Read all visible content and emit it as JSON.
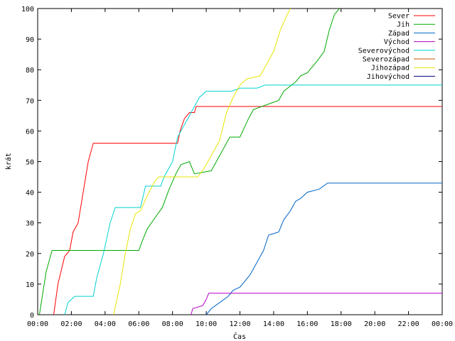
{
  "chart_data": {
    "type": "line",
    "xlabel": "Čas",
    "ylabel": "krát",
    "ylim": [
      0,
      100
    ],
    "xlim": [
      0,
      24
    ],
    "x_unit": "hours",
    "y_ticks": [
      0,
      10,
      20,
      30,
      40,
      50,
      60,
      70,
      80,
      90,
      100
    ],
    "x_ticks": [
      {
        "x": 0,
        "label": "00:00"
      },
      {
        "x": 2,
        "label": "02:00"
      },
      {
        "x": 4,
        "label": "04:00"
      },
      {
        "x": 6,
        "label": "06:00"
      },
      {
        "x": 8,
        "label": "08:00"
      },
      {
        "x": 10,
        "label": "10:00"
      },
      {
        "x": 12,
        "label": "12:00"
      },
      {
        "x": 14,
        "label": "14:00"
      },
      {
        "x": 16,
        "label": "16:00"
      },
      {
        "x": 18,
        "label": "18:00"
      },
      {
        "x": 20,
        "label": "20:00"
      },
      {
        "x": 22,
        "label": "22:00"
      },
      {
        "x": 24,
        "label": "00:00"
      }
    ],
    "grid": false,
    "legend_position": "top-right",
    "series": [
      {
        "name": "Sever",
        "color": "#ff0000",
        "points": [
          [
            0.95,
            0
          ],
          [
            1.2,
            10
          ],
          [
            1.6,
            19
          ],
          [
            1.9,
            21
          ],
          [
            2.1,
            27
          ],
          [
            2.4,
            30
          ],
          [
            2.7,
            40
          ],
          [
            3.0,
            50
          ],
          [
            3.3,
            56
          ],
          [
            8.3,
            56
          ],
          [
            8.45,
            60
          ],
          [
            8.7,
            64
          ],
          [
            9.0,
            66
          ],
          [
            9.3,
            66
          ],
          [
            9.4,
            68
          ],
          [
            24,
            68
          ]
        ]
      },
      {
        "name": "Jih",
        "color": "#00aa00",
        "points": [
          [
            0.1,
            0
          ],
          [
            0.5,
            14
          ],
          [
            0.85,
            21
          ],
          [
            6.0,
            21
          ],
          [
            6.2,
            24
          ],
          [
            6.5,
            28
          ],
          [
            7.0,
            32
          ],
          [
            7.4,
            35
          ],
          [
            7.8,
            41
          ],
          [
            8.2,
            46
          ],
          [
            8.5,
            49
          ],
          [
            9.0,
            50
          ],
          [
            9.3,
            46
          ],
          [
            10.3,
            47
          ],
          [
            10.6,
            50
          ],
          [
            11.1,
            55
          ],
          [
            11.4,
            58
          ],
          [
            12.0,
            58
          ],
          [
            12.5,
            64
          ],
          [
            12.8,
            67
          ],
          [
            13.8,
            69
          ],
          [
            14.3,
            70
          ],
          [
            14.6,
            73
          ],
          [
            15.3,
            76
          ],
          [
            15.6,
            78
          ],
          [
            16.0,
            79
          ],
          [
            16.6,
            83
          ],
          [
            17.0,
            86
          ],
          [
            17.3,
            93
          ],
          [
            17.6,
            98
          ],
          [
            17.9,
            100
          ]
        ]
      },
      {
        "name": "Západ",
        "color": "#0064c8",
        "points": [
          [
            10.0,
            0
          ],
          [
            10.3,
            2
          ],
          [
            10.8,
            4
          ],
          [
            11.3,
            6
          ],
          [
            11.6,
            8
          ],
          [
            12.0,
            9
          ],
          [
            12.6,
            13
          ],
          [
            13.0,
            17
          ],
          [
            13.4,
            21
          ],
          [
            13.7,
            26
          ],
          [
            14.3,
            27
          ],
          [
            14.6,
            31
          ],
          [
            15.0,
            34
          ],
          [
            15.3,
            37
          ],
          [
            15.6,
            38
          ],
          [
            16.0,
            40
          ],
          [
            16.7,
            41
          ],
          [
            17.2,
            43
          ],
          [
            24,
            43
          ]
        ]
      },
      {
        "name": "Východ",
        "color": "#b400c8",
        "points": [
          [
            9.1,
            0
          ],
          [
            9.2,
            2
          ],
          [
            9.8,
            3
          ],
          [
            10.0,
            5
          ],
          [
            10.15,
            7
          ],
          [
            24,
            7
          ]
        ]
      },
      {
        "name": "Severovýchod",
        "color": "#00d2d2",
        "points": [
          [
            1.6,
            0
          ],
          [
            1.8,
            4
          ],
          [
            2.2,
            6
          ],
          [
            3.3,
            6
          ],
          [
            3.5,
            12
          ],
          [
            3.9,
            20
          ],
          [
            4.3,
            30
          ],
          [
            4.6,
            35
          ],
          [
            6.1,
            35
          ],
          [
            6.4,
            42
          ],
          [
            7.3,
            42
          ],
          [
            7.5,
            45
          ],
          [
            8.0,
            50
          ],
          [
            8.3,
            58
          ],
          [
            8.9,
            64
          ],
          [
            9.6,
            71
          ],
          [
            10.0,
            73
          ],
          [
            11.5,
            73
          ],
          [
            12.0,
            74
          ],
          [
            13.0,
            74
          ],
          [
            13.5,
            75
          ],
          [
            24,
            75
          ]
        ]
      },
      {
        "name": "Severozápad",
        "color": "#c85000",
        "points": []
      },
      {
        "name": "Jihozápad",
        "color": "#e6e600",
        "points": [
          [
            4.5,
            0
          ],
          [
            4.9,
            10
          ],
          [
            5.2,
            20
          ],
          [
            5.5,
            28
          ],
          [
            5.8,
            33
          ],
          [
            6.1,
            34
          ],
          [
            6.6,
            40
          ],
          [
            7.0,
            44
          ],
          [
            7.2,
            45
          ],
          [
            9.5,
            45
          ],
          [
            9.9,
            48
          ],
          [
            10.3,
            52
          ],
          [
            10.8,
            57
          ],
          [
            11.2,
            66
          ],
          [
            11.6,
            71
          ],
          [
            12.0,
            75
          ],
          [
            12.4,
            77
          ],
          [
            13.2,
            78
          ],
          [
            13.6,
            82
          ],
          [
            14.0,
            86
          ],
          [
            14.4,
            93
          ],
          [
            14.8,
            98
          ],
          [
            15.0,
            100
          ]
        ]
      },
      {
        "name": "Jihovýchod",
        "color": "#000080",
        "points": []
      }
    ]
  }
}
